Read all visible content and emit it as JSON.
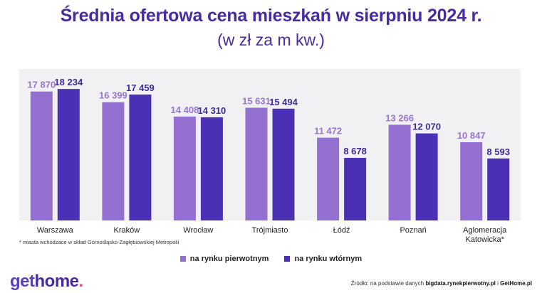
{
  "title": "Średnia ofertowa cena mieszkań w sierpniu  2024 r.",
  "subtitle": "(w zł za m kw.)",
  "footnote": "* miasta wchodzace w skład Górnośląsko-Zagłębiowskiej Metropolii",
  "legend": {
    "primary": "na rynku pierwotnym",
    "secondary": "na rynku wtórnym"
  },
  "logo": {
    "part1": "get",
    "part2": "home",
    "dot": "."
  },
  "source": {
    "prefix": "Źródło: na podstawie danych ",
    "site1": "bigdata.rynekpierwotny.pl",
    "separator": " i ",
    "site2": "GetHome.pl"
  },
  "colors": {
    "primary": "#9370cf",
    "secondary": "#4b2fb5",
    "primary_label": "#9776d2",
    "secondary_label": "#3f2a9c",
    "plot_bg": "#f1f1f3",
    "title": "#4a2aa0"
  },
  "chart_data": {
    "type": "bar",
    "categories": [
      [
        "Warszawa"
      ],
      [
        "Kraków"
      ],
      [
        "Wrocław"
      ],
      [
        "Trójmiasto"
      ],
      [
        "Łódź"
      ],
      [
        "Poznań"
      ],
      [
        "Aglomeracja",
        "Katowicka*"
      ]
    ],
    "series": [
      {
        "name": "na rynku pierwotnym",
        "values": [
          17870,
          16399,
          14408,
          15631,
          11472,
          13266,
          10847
        ],
        "labels": [
          "17 870",
          "16 399",
          "14 408",
          "15 631",
          "11 472",
          "13 266",
          "10 847"
        ]
      },
      {
        "name": "na rynku wtórnym",
        "values": [
          18234,
          17459,
          14310,
          15494,
          8678,
          12070,
          8593
        ],
        "labels": [
          "18 234",
          "17 459",
          "14 310",
          "15 494",
          "8 678",
          "12 070",
          "8 593"
        ]
      }
    ],
    "ylim": [
      0,
      21000
    ],
    "grid": false,
    "legend_position": "bottom-center"
  }
}
